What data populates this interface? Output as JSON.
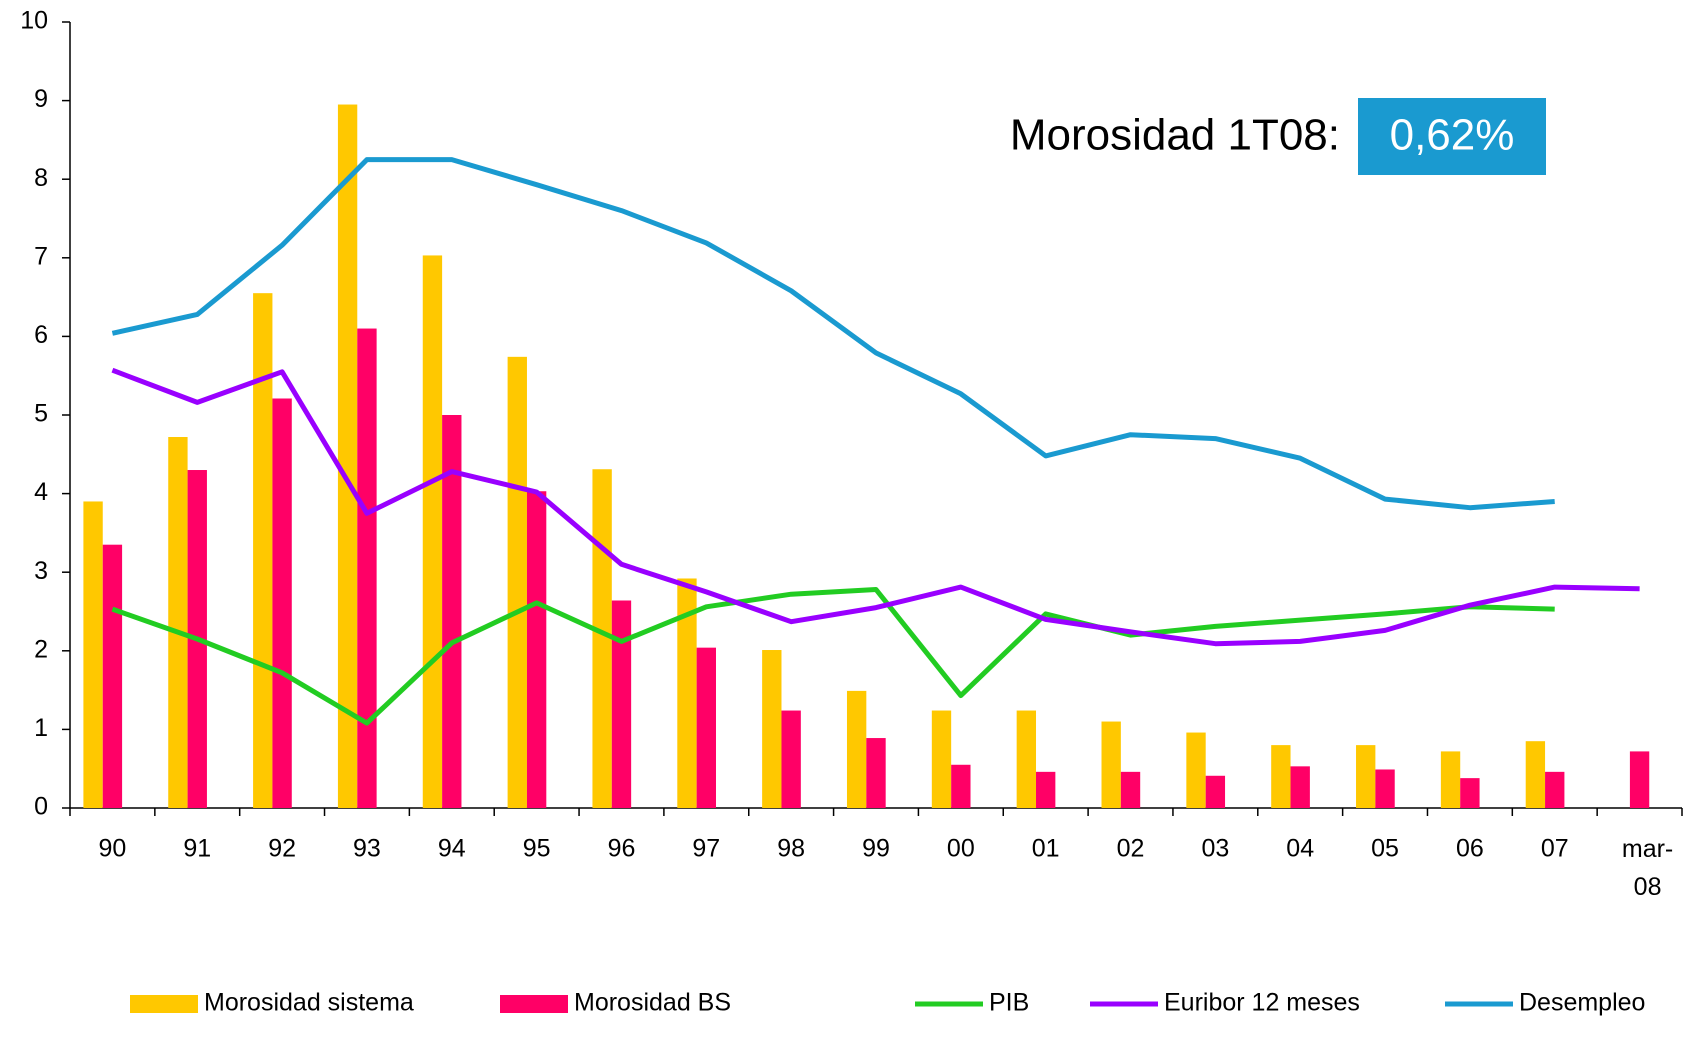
{
  "chart_data": {
    "type": "bar_line",
    "categories": [
      "90",
      "91",
      "92",
      "93",
      "94",
      "95",
      "96",
      "97",
      "98",
      "99",
      "00",
      "01",
      "02",
      "03",
      "04",
      "05",
      "06",
      "07",
      "mar-08"
    ],
    "ylim": [
      0,
      10
    ],
    "yticks": [
      0,
      1,
      2,
      3,
      4,
      5,
      6,
      7,
      8,
      9,
      10
    ],
    "annotation": {
      "text": "Morosidad 1T08:",
      "value_label": "0,62%",
      "color": "#1a9ad0"
    },
    "series": [
      {
        "name": "Morosidad sistema",
        "kind": "bar",
        "color": "#ffc800",
        "values": [
          3.9,
          4.72,
          6.55,
          8.95,
          7.03,
          5.74,
          4.31,
          2.92,
          2.01,
          1.49,
          1.24,
          1.24,
          1.1,
          0.96,
          0.8,
          0.8,
          0.72,
          0.85,
          null
        ]
      },
      {
        "name": "Morosidad BS",
        "kind": "bar",
        "color": "#ff0066",
        "values": [
          3.35,
          4.3,
          5.21,
          6.1,
          5.0,
          4.03,
          2.64,
          2.04,
          1.24,
          0.89,
          0.55,
          0.46,
          0.46,
          0.41,
          0.53,
          0.49,
          0.38,
          0.46,
          0.72
        ]
      },
      {
        "name": "PIB",
        "kind": "line",
        "color": "#22cc22",
        "values": [
          2.53,
          2.15,
          1.72,
          1.08,
          2.1,
          2.61,
          2.12,
          2.56,
          2.72,
          2.78,
          1.43,
          2.47,
          2.2,
          2.31,
          2.39,
          2.47,
          2.56,
          2.53,
          null
        ]
      },
      {
        "name": "Euribor 12 meses",
        "kind": "line",
        "color": "#9900ff",
        "values": [
          5.57,
          5.16,
          5.55,
          3.75,
          4.28,
          4.02,
          3.1,
          2.75,
          2.37,
          2.55,
          2.81,
          2.4,
          2.24,
          2.09,
          2.12,
          2.26,
          2.58,
          2.81,
          2.79
        ]
      },
      {
        "name": "Desempleo",
        "kind": "line",
        "color": "#1a9ad0",
        "values": [
          6.04,
          6.28,
          7.16,
          8.25,
          8.25,
          7.93,
          7.6,
          7.19,
          6.58,
          5.79,
          5.27,
          4.48,
          4.75,
          4.7,
          4.45,
          3.93,
          3.82,
          3.9,
          null
        ]
      }
    ]
  }
}
